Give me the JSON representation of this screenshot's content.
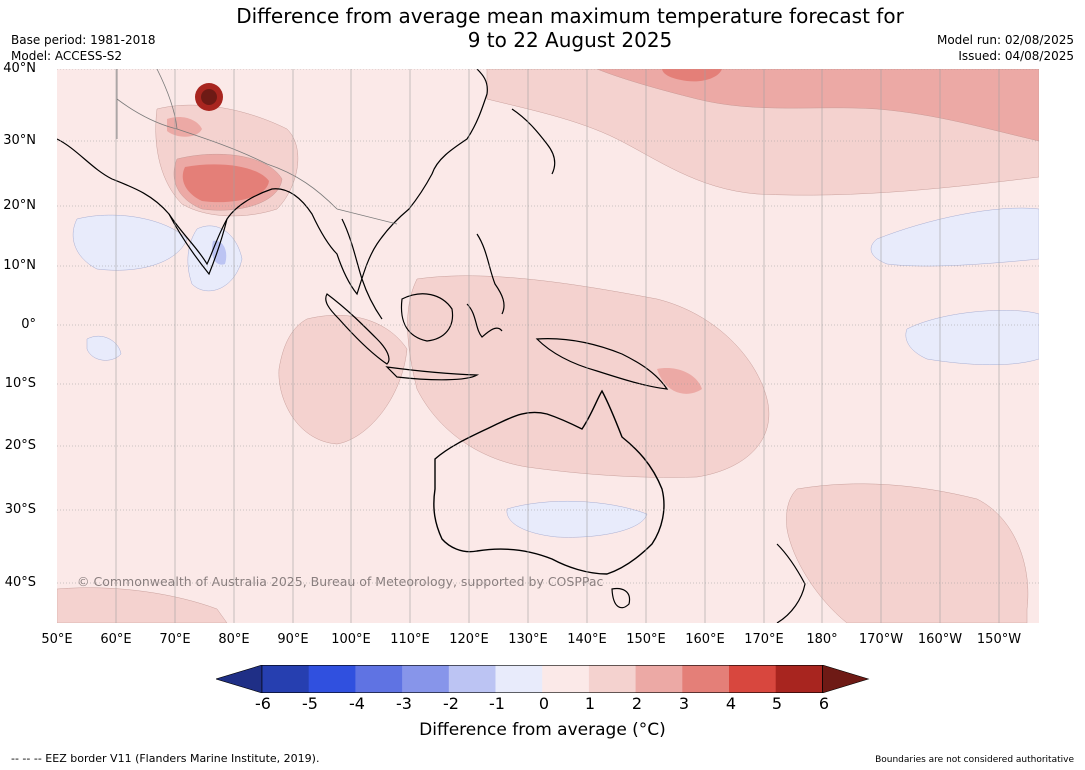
{
  "title_line1": "Difference from average mean maximum temperature forecast for",
  "title_line2": "9 to 22 August 2025",
  "base_period": "Base period: 1981-2018",
  "model": "Model: ACCESS-S2",
  "model_run": "Model run: 02/08/2025",
  "issued": "Issued: 04/08/2025",
  "copyright": "© Commonwealth of Australia 2025, Bureau of Meteorology, supported by COSPPac",
  "eez_note": "-- -- -- EEZ border V11 (Flanders Marine Institute, 2019).",
  "boundary_note": "Boundaries are not considered authoritative",
  "latitude_labels": [
    "40°N",
    "30°N",
    "20°N",
    "10°N",
    "0°",
    "10°S",
    "20°S",
    "30°S",
    "40°S"
  ],
  "longitude_labels": [
    "50°E",
    "60°E",
    "70°E",
    "80°E",
    "90°E",
    "100°E",
    "110°E",
    "120°E",
    "130°E",
    "140°E",
    "150°E",
    "160°E",
    "170°E",
    "180°",
    "170°W",
    "160°W",
    "150°W"
  ],
  "colorbar": {
    "label": "Difference from average (°C)",
    "ticks": [
      "-6",
      "-5",
      "-4",
      "-3",
      "-2",
      "-1",
      "0",
      "1",
      "2",
      "3",
      "4",
      "5",
      "6"
    ],
    "colors": [
      "#1f2f86",
      "#263fb0",
      "#3050df",
      "#5f73e3",
      "#8795ea",
      "#bcc4f3",
      "#e8ebfb",
      "#fbe9e8",
      "#f4d2cf",
      "#eca9a5",
      "#e47f78",
      "#d8473e",
      "#a8251f",
      "#6e1a15"
    ]
  },
  "map_colors": {
    "ocean_base": "#fbe9e8",
    "warm1": "#f4d2cf",
    "warm2": "#eca9a5",
    "warm3": "#e47f78",
    "warm4": "#a8251f",
    "cool1": "#e8ebfb",
    "cool2": "#bcc4f3"
  }
}
